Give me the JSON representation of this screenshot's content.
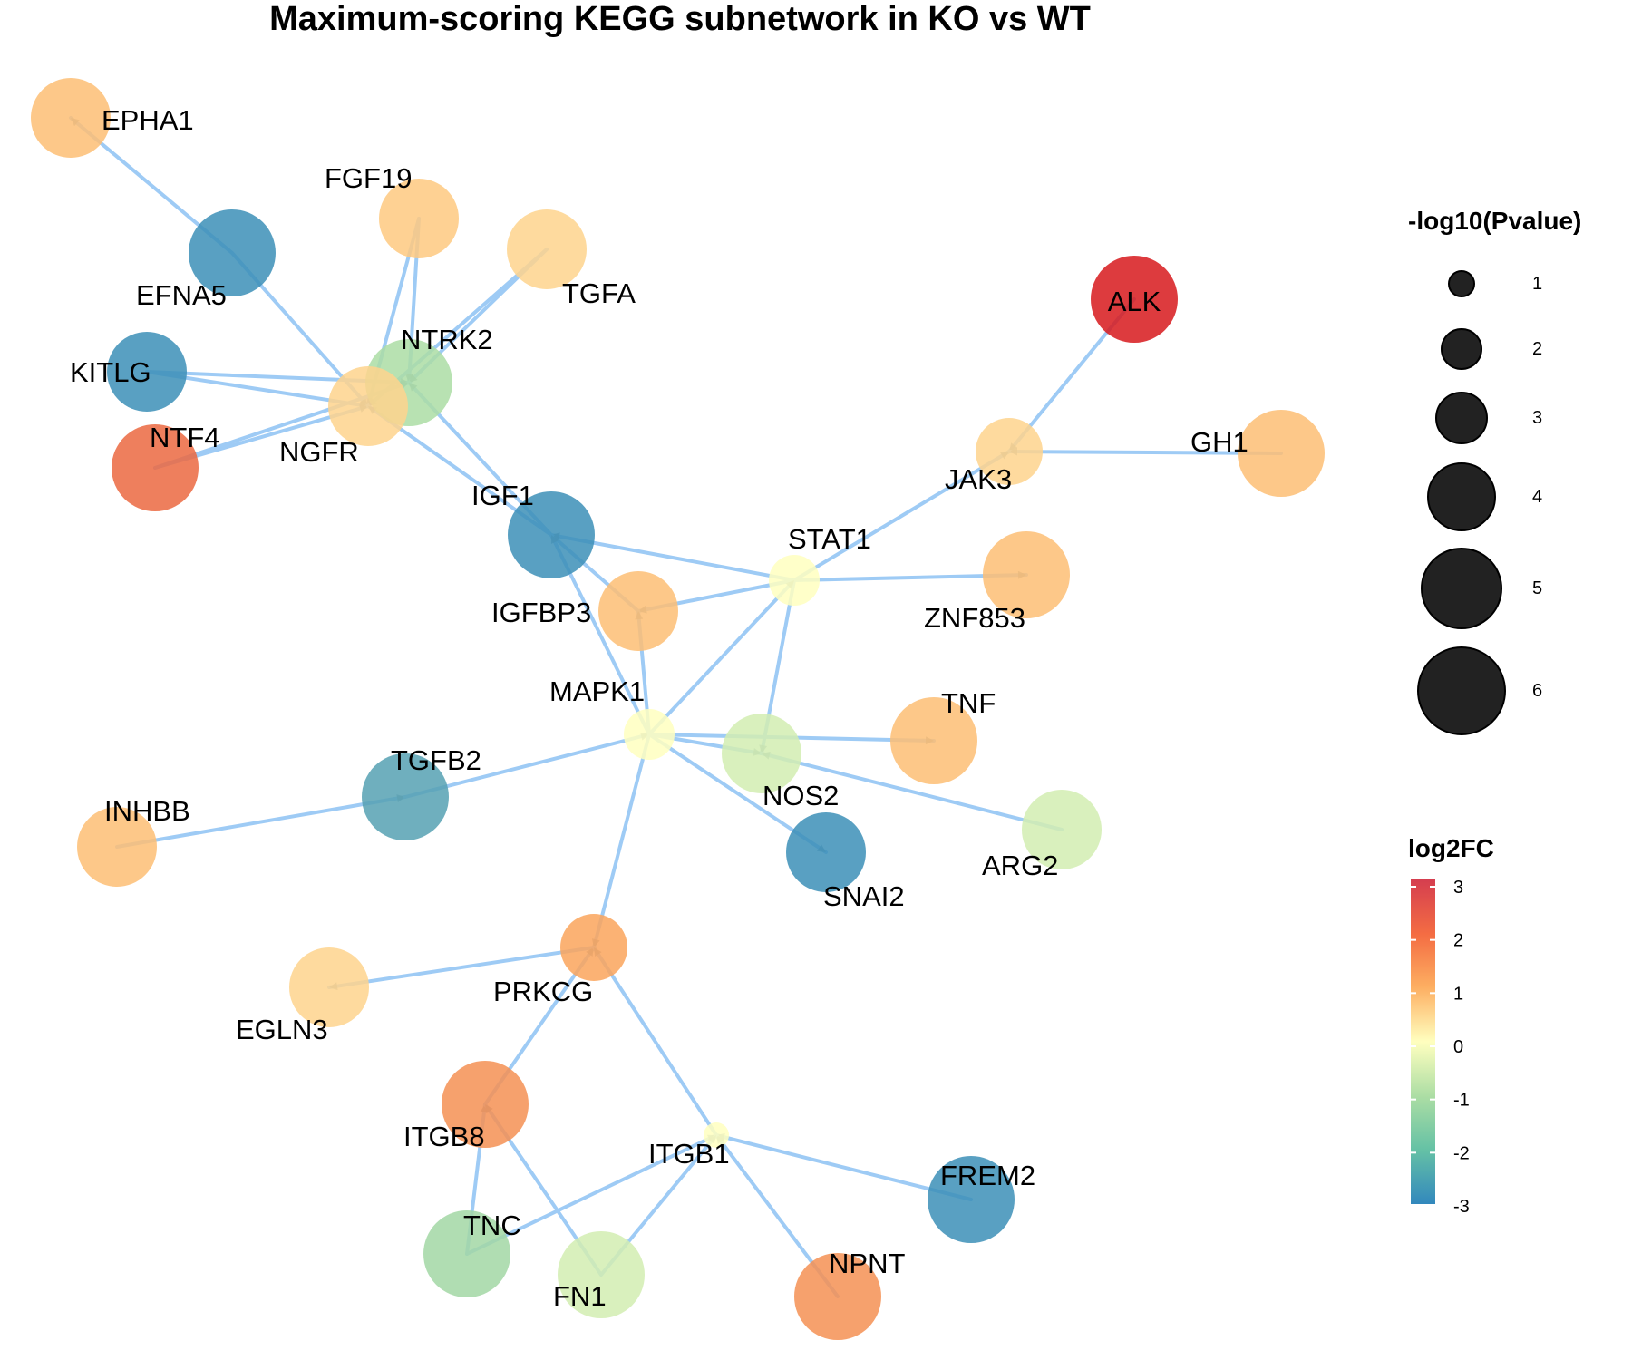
{
  "title": "Maximum-scoring KEGG subnetwork in KO vs WT",
  "colors": {
    "edge": "#9ecbf5",
    "arrow": "#8a9fb0",
    "legend_dot": "#222222",
    "log2fc_scale": [
      "#2b83ba",
      "#abdda4",
      "#ffffbf",
      "#fdae61",
      "#d7191c"
    ]
  },
  "legend_size": {
    "title": "-log10(Pvalue)",
    "levels": [
      "1",
      "2",
      "3",
      "4",
      "5",
      "6"
    ]
  },
  "legend_color": {
    "title": "log2FC",
    "ticks": [
      "3",
      "2",
      "1",
      "0",
      "-1",
      "-2",
      "-3"
    ]
  },
  "nodes": [
    {
      "id": "EPHA1",
      "label": "EPHA1",
      "log2fc": 1.2,
      "nlogp": 5
    },
    {
      "id": "FGF19",
      "label": "FGF19",
      "log2fc": 1.0,
      "nlogp": 5
    },
    {
      "id": "EFNA5",
      "label": "EFNA5",
      "log2fc": -2.8,
      "nlogp": 6
    },
    {
      "id": "TGFA",
      "label": "TGFA",
      "log2fc": 0.8,
      "nlogp": 5
    },
    {
      "id": "KITLG",
      "label": "KITLG",
      "log2fc": -2.8,
      "nlogp": 5
    },
    {
      "id": "NTRK2",
      "label": "NTRK2",
      "log2fc": -1.5,
      "nlogp": 6
    },
    {
      "id": "NGFR",
      "label": "NGFR",
      "log2fc": 0.8,
      "nlogp": 5
    },
    {
      "id": "NTF4",
      "label": "NTF4",
      "log2fc": 2.2,
      "nlogp": 6
    },
    {
      "id": "ALK",
      "label": "ALK",
      "log2fc": 3.0,
      "nlogp": 6
    },
    {
      "id": "JAK3",
      "label": "JAK3",
      "log2fc": 0.8,
      "nlogp": 4
    },
    {
      "id": "GH1",
      "label": "GH1",
      "log2fc": 1.2,
      "nlogp": 6
    },
    {
      "id": "IGF1",
      "label": "IGF1",
      "log2fc": -2.8,
      "nlogp": 6
    },
    {
      "id": "STAT1",
      "label": "STAT1",
      "log2fc": 0.0,
      "nlogp": 3
    },
    {
      "id": "ZNF853",
      "label": "ZNF853",
      "log2fc": 1.2,
      "nlogp": 6
    },
    {
      "id": "IGFBP3",
      "label": "IGFBP3",
      "log2fc": 1.2,
      "nlogp": 5
    },
    {
      "id": "MAPK1",
      "label": "MAPK1",
      "log2fc": 0.0,
      "nlogp": 3
    },
    {
      "id": "TNF",
      "label": "TNF",
      "log2fc": 1.2,
      "nlogp": 6
    },
    {
      "id": "NOS2",
      "label": "NOS2",
      "log2fc": -0.8,
      "nlogp": 5
    },
    {
      "id": "TGFB2",
      "label": "TGFB2",
      "log2fc": -2.5,
      "nlogp": 6
    },
    {
      "id": "INHBB",
      "label": "INHBB",
      "log2fc": 1.2,
      "nlogp": 5
    },
    {
      "id": "ARG2",
      "label": "ARG2",
      "log2fc": -0.8,
      "nlogp": 5
    },
    {
      "id": "SNAI2",
      "label": "SNAI2",
      "log2fc": -2.8,
      "nlogp": 5
    },
    {
      "id": "PRKCG",
      "label": "PRKCG",
      "log2fc": 1.6,
      "nlogp": 4
    },
    {
      "id": "EGLN3",
      "label": "EGLN3",
      "log2fc": 0.8,
      "nlogp": 5
    },
    {
      "id": "ITGB8",
      "label": "ITGB8",
      "log2fc": 1.8,
      "nlogp": 6
    },
    {
      "id": "ITGB1",
      "label": "ITGB1",
      "log2fc": 0.0,
      "nlogp": 1
    },
    {
      "id": "FREM2",
      "label": "FREM2",
      "log2fc": -2.8,
      "nlogp": 6
    },
    {
      "id": "TNC",
      "label": "TNC",
      "log2fc": -1.6,
      "nlogp": 6
    },
    {
      "id": "FN1",
      "label": "FN1",
      "log2fc": -0.8,
      "nlogp": 6
    },
    {
      "id": "NPNT",
      "label": "NPNT",
      "log2fc": 1.8,
      "nlogp": 6
    }
  ],
  "edges": [
    {
      "from": "EFNA5",
      "to": "EPHA1"
    },
    {
      "from": "FGF19",
      "to": "NGFR"
    },
    {
      "from": "FGF19",
      "to": "NTRK2"
    },
    {
      "from": "TGFA",
      "to": "NTRK2"
    },
    {
      "from": "TGFA",
      "to": "NGFR"
    },
    {
      "from": "EFNA5",
      "to": "NGFR"
    },
    {
      "from": "KITLG",
      "to": "NGFR"
    },
    {
      "from": "KITLG",
      "to": "NTRK2"
    },
    {
      "from": "NTF4",
      "to": "NGFR"
    },
    {
      "from": "NTF4",
      "to": "NTRK2"
    },
    {
      "from": "IGF1",
      "to": "NTRK2"
    },
    {
      "from": "IGF1",
      "to": "NGFR"
    },
    {
      "from": "ALK",
      "to": "JAK3"
    },
    {
      "from": "GH1",
      "to": "JAK3"
    },
    {
      "from": "STAT1",
      "to": "JAK3"
    },
    {
      "from": "STAT1",
      "to": "IGF1"
    },
    {
      "from": "STAT1",
      "to": "IGFBP3"
    },
    {
      "from": "STAT1",
      "to": "ZNF853"
    },
    {
      "from": "STAT1",
      "to": "NOS2"
    },
    {
      "from": "MAPK1",
      "to": "STAT1"
    },
    {
      "from": "IGFBP3",
      "to": "IGF1"
    },
    {
      "from": "MAPK1",
      "to": "IGF1"
    },
    {
      "from": "MAPK1",
      "to": "IGFBP3"
    },
    {
      "from": "MAPK1",
      "to": "TNF"
    },
    {
      "from": "MAPK1",
      "to": "NOS2"
    },
    {
      "from": "MAPK1",
      "to": "SNAI2"
    },
    {
      "from": "ARG2",
      "to": "NOS2"
    },
    {
      "from": "INHBB",
      "to": "TGFB2"
    },
    {
      "from": "TGFB2",
      "to": "MAPK1"
    },
    {
      "from": "MAPK1",
      "to": "PRKCG"
    },
    {
      "from": "PRKCG",
      "to": "EGLN3"
    },
    {
      "from": "ITGB8",
      "to": "PRKCG"
    },
    {
      "from": "ITGB1",
      "to": "PRKCG"
    },
    {
      "from": "FREM2",
      "to": "ITGB1"
    },
    {
      "from": "NPNT",
      "to": "ITGB1"
    },
    {
      "from": "TNC",
      "to": "ITGB1"
    },
    {
      "from": "FN1",
      "to": "ITGB1"
    },
    {
      "from": "TNC",
      "to": "ITGB8"
    },
    {
      "from": "FN1",
      "to": "ITGB8"
    }
  ]
}
